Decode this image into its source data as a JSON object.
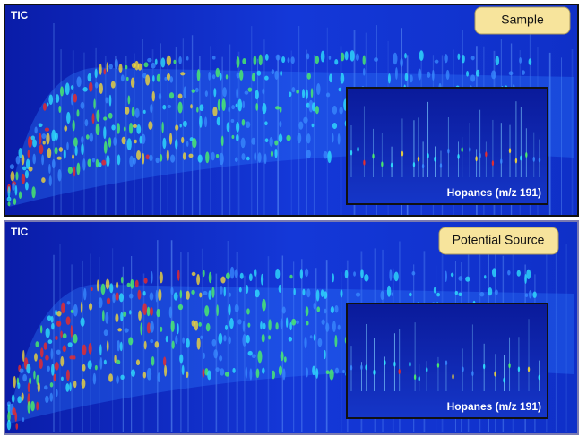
{
  "panels": [
    {
      "tic_label": "TIC",
      "title": "Sample",
      "inset_label": "Hopanes (m/z 191)"
    },
    {
      "tic_label": "TIC",
      "title": "Potential Source",
      "inset_label": "Hopanes (m/z 191)"
    }
  ]
}
